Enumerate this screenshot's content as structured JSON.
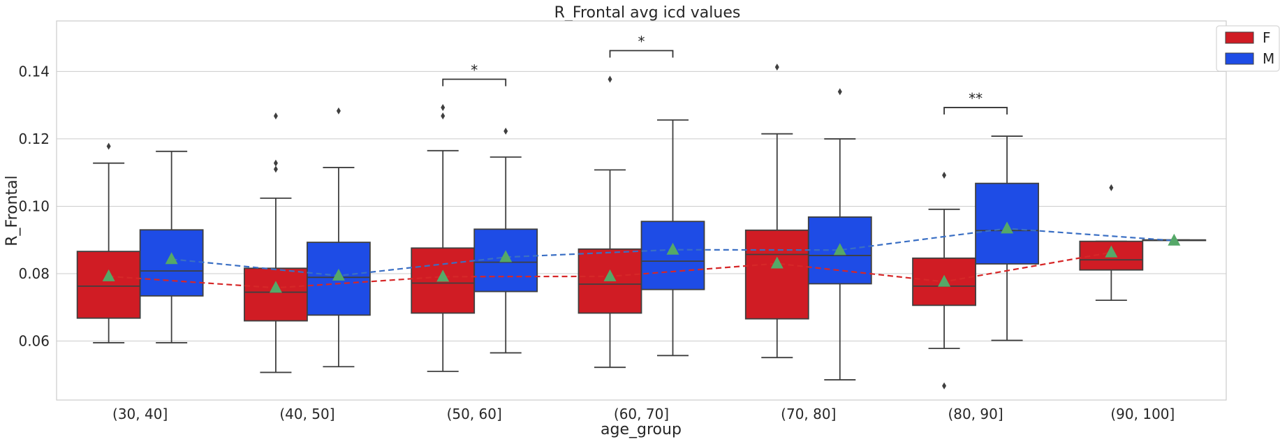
{
  "chart_data": {
    "type": "box",
    "title": "R_Frontal avg icd values",
    "xlabel": "age_group",
    "ylabel": "R_Frontal",
    "ylim": [
      0.0425,
      0.155
    ],
    "yticks": [
      "0.06",
      "0.08",
      "0.10",
      "0.12",
      "0.14"
    ],
    "ytick_values": [
      0.06,
      0.08,
      0.1,
      0.12,
      0.14
    ],
    "grid": true,
    "legend_position": "top-right",
    "categories": [
      "(30, 40]",
      "(40, 50]",
      "(50, 60]",
      "(60, 70]",
      "(70, 80]",
      "(80, 90]",
      "(90, 100]"
    ],
    "series": [
      {
        "name": "F",
        "color": "#d01c24",
        "line_color": "#d62728",
        "boxes": [
          {
            "whislo": 0.0595,
            "q1": 0.0668,
            "med": 0.0763,
            "q3": 0.0866,
            "whishi": 0.1128,
            "mean": 0.0792,
            "fliers": [
              0.1178
            ]
          },
          {
            "whislo": 0.0507,
            "q1": 0.066,
            "med": 0.0745,
            "q3": 0.0816,
            "whishi": 0.1024,
            "mean": 0.0758,
            "fliers": [
              0.1268,
              0.1128,
              0.111
            ]
          },
          {
            "whislo": 0.051,
            "q1": 0.0683,
            "med": 0.0772,
            "q3": 0.0876,
            "whishi": 0.1165,
            "mean": 0.0791,
            "fliers": [
              0.1293,
              0.1268
            ]
          },
          {
            "whislo": 0.0522,
            "q1": 0.0683,
            "med": 0.0769,
            "q3": 0.0873,
            "whishi": 0.1108,
            "mean": 0.0792,
            "fliers": [
              0.1377
            ]
          },
          {
            "whislo": 0.0551,
            "q1": 0.0666,
            "med": 0.0857,
            "q3": 0.0929,
            "whishi": 0.1215,
            "mean": 0.083,
            "fliers": [
              0.1413
            ]
          },
          {
            "whislo": 0.0578,
            "q1": 0.0706,
            "med": 0.0763,
            "q3": 0.0846,
            "whishi": 0.0991,
            "mean": 0.0776,
            "fliers": [
              0.1092,
              0.0467
            ]
          },
          {
            "whislo": 0.0721,
            "q1": 0.0811,
            "med": 0.0841,
            "q3": 0.0896,
            "whishi": 0.0896,
            "mean": 0.0863,
            "fliers": [
              0.1055
            ]
          }
        ]
      },
      {
        "name": "M",
        "color": "#1e4ce6",
        "line_color": "#3a6fc4",
        "boxes": [
          {
            "whislo": 0.0595,
            "q1": 0.0734,
            "med": 0.0808,
            "q3": 0.093,
            "whishi": 0.1163,
            "mean": 0.0843,
            "fliers": []
          },
          {
            "whislo": 0.0524,
            "q1": 0.0677,
            "med": 0.0789,
            "q3": 0.0893,
            "whishi": 0.1115,
            "mean": 0.0794,
            "fliers": [
              0.1283
            ]
          },
          {
            "whislo": 0.0565,
            "q1": 0.0747,
            "med": 0.0834,
            "q3": 0.0932,
            "whishi": 0.1146,
            "mean": 0.0849,
            "fliers": [
              0.1223
            ]
          },
          {
            "whislo": 0.0557,
            "q1": 0.0753,
            "med": 0.0837,
            "q3": 0.0955,
            "whishi": 0.1256,
            "mean": 0.0871,
            "fliers": []
          },
          {
            "whislo": 0.0485,
            "q1": 0.077,
            "med": 0.0854,
            "q3": 0.0968,
            "whishi": 0.12,
            "mean": 0.087,
            "fliers": [
              0.134
            ]
          },
          {
            "whislo": 0.0602,
            "q1": 0.0829,
            "med": 0.0928,
            "q3": 0.1068,
            "whishi": 0.1208,
            "mean": 0.0934,
            "fliers": []
          },
          {
            "whislo": 0.09,
            "q1": 0.09,
            "med": 0.09,
            "q3": 0.09,
            "whishi": 0.09,
            "mean": 0.0898,
            "fliers": []
          }
        ]
      }
    ],
    "annotations": [
      {
        "category_index": 2,
        "label": "*",
        "y": 0.1377
      },
      {
        "category_index": 3,
        "label": "*",
        "y": 0.1462
      },
      {
        "category_index": 5,
        "label": "**",
        "y": 0.1293
      }
    ],
    "mean_marker_color": "#55a868"
  }
}
